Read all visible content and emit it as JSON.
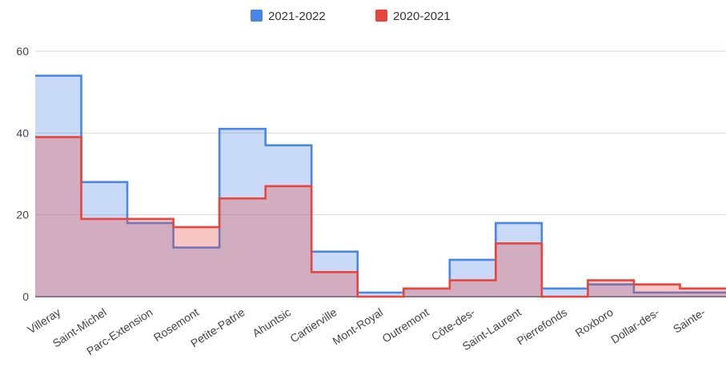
{
  "chart_data": {
    "type": "area",
    "step": true,
    "categories": [
      "Villeray",
      "Saint-Michel",
      "Parc-Extension",
      "Rosemont",
      "Petite-Patrie",
      "Ahuntsic",
      "Cartierville",
      "Mont-Royal",
      "Outremont",
      "Côte-des-",
      "Saint-Laurent",
      "Pierrefonds",
      "Roxboro",
      "Dollar-des-",
      "Sainte-"
    ],
    "series": [
      {
        "name": "2021-2022",
        "color": "#4a86e8",
        "values": [
          54,
          28,
          18,
          12,
          41,
          37,
          11,
          1,
          2,
          9,
          18,
          2,
          3,
          1,
          1
        ]
      },
      {
        "name": "2020-2021",
        "color": "#e8453c",
        "values": [
          39,
          19,
          19,
          17,
          24,
          27,
          6,
          0,
          2,
          4,
          13,
          0,
          4,
          3,
          2
        ]
      }
    ],
    "title": "",
    "xlabel": "",
    "ylabel": "",
    "ylim": [
      0,
      60
    ],
    "yticks": [
      0,
      20,
      40,
      60
    ],
    "grid": true,
    "legend": "top-center"
  }
}
